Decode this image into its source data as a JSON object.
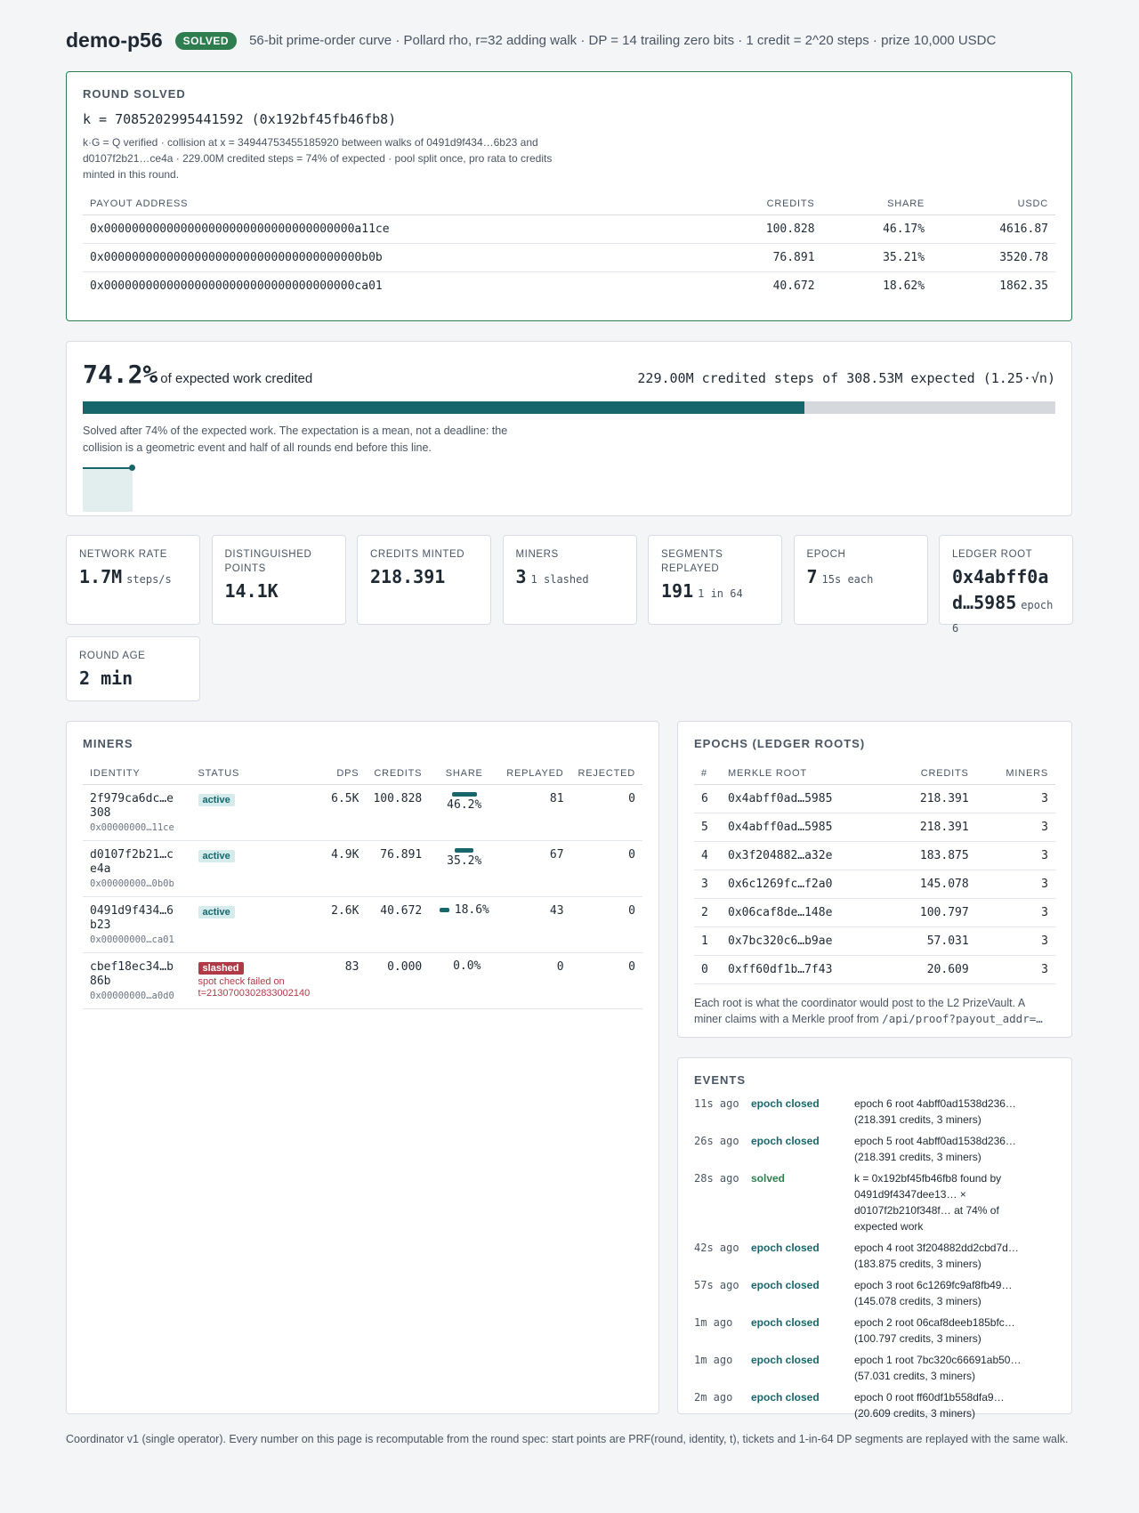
{
  "header": {
    "title": "demo-p56",
    "badge": "SOLVED",
    "spec": "56-bit prime-order curve · Pollard rho, r=32 adding walk · DP = 14 trailing zero bits · 1 credit = 2^20 steps · prize 10,000 USDC"
  },
  "solved": {
    "heading": "ROUND SOLVED",
    "key": "k = 7085202995441592 (0x192bf45fb46fb8)",
    "note": "k·G = Q verified · collision at x = 34944753455185920 between walks of 0491d9f434…6b23 and d0107f2b21…ce4a · 229.00M credited steps = 74% of expected · pool split once, pro rata to credits minted in this round.",
    "columns": [
      "PAYOUT ADDRESS",
      "CREDITS",
      "SHARE",
      "USDC"
    ],
    "rows": [
      [
        "0x000000000000000000000000000000000000a11ce",
        "100.828",
        "46.17%",
        "4616.87"
      ],
      [
        "0x0000000000000000000000000000000000000b0b",
        "76.891",
        "35.21%",
        "3520.78"
      ],
      [
        "0x000000000000000000000000000000000000ca01",
        "40.672",
        "18.62%",
        "1862.35"
      ]
    ]
  },
  "progress": {
    "value": 74.2,
    "value_label": "74.2%",
    "caption": "of expected work credited",
    "detail": "229.00M credited steps of 308.53M expected (1.25·√n)",
    "note": "Solved after 74% of the expected work. The expectation is a mean, not a deadline: the collision is a geometric event and half of all rounds end before this line."
  },
  "stats": [
    {
      "label": "NETWORK RATE",
      "value": "1.7M",
      "unit": "steps/s"
    },
    {
      "label": "DISTINGUISHED POINTS",
      "value": "14.1K"
    },
    {
      "label": "CREDITS MINTED",
      "value": "218.391"
    },
    {
      "label": "MINERS",
      "value": "3",
      "unit": "1 slashed"
    },
    {
      "label": "SEGMENTS REPLAYED",
      "value": "191",
      "unit": "1 in 64"
    },
    {
      "label": "EPOCH",
      "value": "7",
      "unit": "15s each"
    },
    {
      "label": "LEDGER ROOT",
      "value": "0x4abff0ad…5985",
      "unit": "epoch 6"
    },
    {
      "label": "ROUND AGE",
      "value": "2 min"
    }
  ],
  "miners": {
    "heading": "MINERS",
    "columns": [
      "IDENTITY",
      "STATUS",
      "DPS",
      "CREDITS",
      "SHARE",
      "REPLAYED",
      "REJECTED"
    ],
    "rows": [
      {
        "identity": "2f979ca6dc…e308",
        "address": "0x00000000…11ce",
        "status": "active",
        "dps": "6.5K",
        "credits": "100.828",
        "share": 46.2,
        "share_label": "46.2%",
        "replayed": "81",
        "rejected": "0"
      },
      {
        "identity": "d0107f2b21…ce4a",
        "address": "0x00000000…0b0b",
        "status": "active",
        "dps": "4.9K",
        "credits": "76.891",
        "share": 35.2,
        "share_label": "35.2%",
        "replayed": "67",
        "rejected": "0"
      },
      {
        "identity": "0491d9f434…6b23",
        "address": "0x00000000…ca01",
        "status": "active",
        "dps": "2.6K",
        "credits": "40.672",
        "share": 18.6,
        "share_label": "18.6%",
        "replayed": "43",
        "rejected": "0"
      },
      {
        "identity": "cbef18ec34…b86b",
        "address": "0x00000000…a0d0",
        "status": "slashed",
        "reason": "spot check failed on t=2130700302833002140",
        "dps": "83",
        "credits": "0.000",
        "share": 0.0,
        "share_label": "0.0%",
        "replayed": "0",
        "rejected": "0"
      }
    ]
  },
  "epochs": {
    "heading": "EPOCHS (LEDGER ROOTS)",
    "columns": [
      "#",
      "MERKLE ROOT",
      "CREDITS",
      "MINERS"
    ],
    "rows": [
      [
        "6",
        "0x4abff0ad…5985",
        "218.391",
        "3"
      ],
      [
        "5",
        "0x4abff0ad…5985",
        "218.391",
        "3"
      ],
      [
        "4",
        "0x3f204882…a32e",
        "183.875",
        "3"
      ],
      [
        "3",
        "0x6c1269fc…f2a0",
        "145.078",
        "3"
      ],
      [
        "2",
        "0x06caf8de…148e",
        "100.797",
        "3"
      ],
      [
        "1",
        "0x7bc320c6…b9ae",
        "57.031",
        "3"
      ],
      [
        "0",
        "0xff60df1b…7f43",
        "20.609",
        "3"
      ]
    ],
    "note": "Each root is what the coordinator would post to the L2 PrizeVault. A miner claims with a Merkle proof from ",
    "note_code": "/api/proof?payout_addr=…"
  },
  "events": {
    "heading": "EVENTS",
    "items": [
      {
        "time": "11s ago",
        "kind": "epoch closed",
        "text": "epoch 6 root 4abff0ad1538d236… (218.391 credits, 3 miners)"
      },
      {
        "time": "26s ago",
        "kind": "epoch closed",
        "text": "epoch 5 root 4abff0ad1538d236… (218.391 credits, 3 miners)"
      },
      {
        "time": "28s ago",
        "kind": "solved",
        "text": "k = 0x192bf45fb46fb8 found by 0491d9f4347dee13… × d0107f2b210f348f… at 74% of expected work"
      },
      {
        "time": "42s ago",
        "kind": "epoch closed",
        "text": "epoch 4 root 3f204882dd2cbd7d… (183.875 credits, 3 miners)"
      },
      {
        "time": "57s ago",
        "kind": "epoch closed",
        "text": "epoch 3 root 6c1269fc9af8fb49… (145.078 credits, 3 miners)"
      },
      {
        "time": "1m ago",
        "kind": "epoch closed",
        "text": "epoch 2 root 06caf8deeb185bfc… (100.797 credits, 3 miners)"
      },
      {
        "time": "1m ago",
        "kind": "epoch closed",
        "text": "epoch 1 root 7bc320c66691ab50… (57.031 credits, 3 miners)"
      },
      {
        "time": "2m ago",
        "kind": "epoch closed",
        "text": "epoch 0 root ff60df1b558dfa9… (20.609 credits, 3 miners)"
      }
    ]
  },
  "footer": "Coordinator v1 (single operator). Every number on this page is recomputable from the round spec: start points are PRF(round, identity, t), tickets and 1-in-64 DP segments are replayed with the same walk."
}
